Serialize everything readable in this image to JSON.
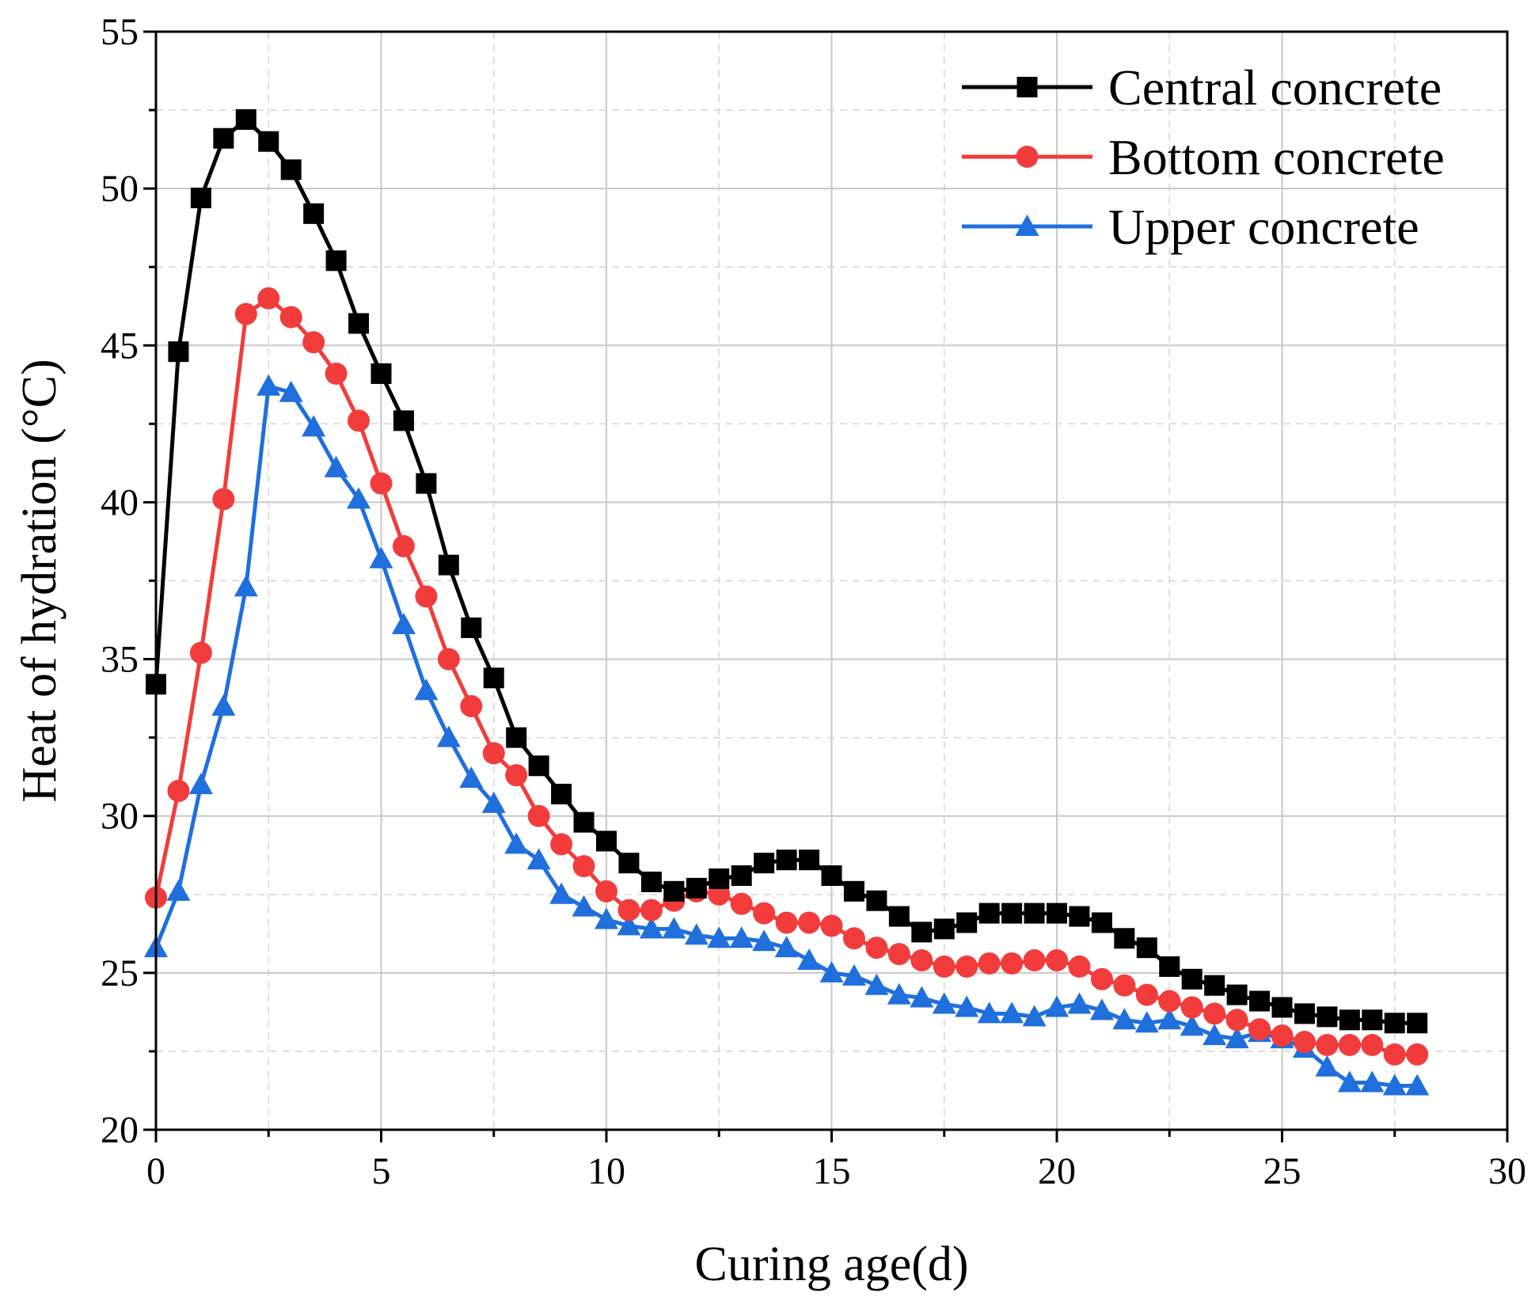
{
  "chart_data": {
    "type": "line",
    "title": "",
    "xlabel": "Curing age(d)",
    "ylabel": "Heat of hydration (°C)",
    "xlim": [
      0,
      30
    ],
    "ylim": [
      20,
      55
    ],
    "xticks": [
      0,
      5,
      10,
      15,
      20,
      25,
      30
    ],
    "yticks": [
      20,
      25,
      30,
      35,
      40,
      45,
      50,
      55
    ],
    "xtick_labels": [
      "0",
      "5",
      "10",
      "15",
      "20",
      "25",
      "30"
    ],
    "ytick_labels": [
      "20",
      "25",
      "30",
      "35",
      "40",
      "45",
      "50",
      "55"
    ],
    "grid": true,
    "legend_position": "top-right",
    "x": [
      0,
      0.5,
      1,
      1.5,
      2,
      2.5,
      3,
      3.5,
      4,
      4.5,
      5,
      5.5,
      6,
      6.5,
      7,
      7.5,
      8,
      8.5,
      9,
      9.5,
      10,
      10.5,
      11,
      11.5,
      12,
      12.5,
      13,
      13.5,
      14,
      14.5,
      15,
      15.5,
      16,
      16.5,
      17,
      17.5,
      18,
      18.5,
      19,
      19.5,
      20,
      20.5,
      21,
      21.5,
      22,
      22.5,
      23,
      23.5,
      24,
      24.5,
      25,
      25.5,
      26,
      26.5,
      27,
      27.5,
      28
    ],
    "series": [
      {
        "name": "Central concrete",
        "color": "#000000",
        "marker": "square",
        "values": [
          34.2,
          44.8,
          49.7,
          51.6,
          52.2,
          51.5,
          50.6,
          49.2,
          47.7,
          45.7,
          44.1,
          42.6,
          40.6,
          38.0,
          36.0,
          34.4,
          32.5,
          31.6,
          30.7,
          29.8,
          29.2,
          28.5,
          27.9,
          27.6,
          27.7,
          28.0,
          28.1,
          28.5,
          28.6,
          28.6,
          28.1,
          27.6,
          27.3,
          26.8,
          26.3,
          26.4,
          26.6,
          26.9,
          26.9,
          26.9,
          26.9,
          26.8,
          26.6,
          26.1,
          25.8,
          25.2,
          24.8,
          24.6,
          24.3,
          24.1,
          23.9,
          23.7,
          23.6,
          23.5,
          23.5,
          23.4,
          23.4
        ]
      },
      {
        "name": "Bottom concrete",
        "color": "#f23c3c",
        "marker": "circle",
        "values": [
          27.4,
          30.8,
          35.2,
          40.1,
          46.0,
          46.5,
          45.9,
          45.1,
          44.1,
          42.6,
          40.6,
          38.6,
          37.0,
          35.0,
          33.5,
          32.0,
          31.3,
          30.0,
          29.1,
          28.4,
          27.6,
          27.0,
          27.0,
          27.3,
          27.6,
          27.5,
          27.2,
          26.9,
          26.6,
          26.6,
          26.5,
          26.1,
          25.8,
          25.6,
          25.4,
          25.2,
          25.2,
          25.3,
          25.3,
          25.4,
          25.4,
          25.2,
          24.8,
          24.6,
          24.3,
          24.1,
          23.9,
          23.7,
          23.5,
          23.2,
          23.0,
          22.8,
          22.7,
          22.7,
          22.7,
          22.4,
          22.4
        ]
      },
      {
        "name": "Upper concrete",
        "color": "#1f6fdc",
        "marker": "triangle",
        "values": [
          25.8,
          27.6,
          31.0,
          33.5,
          37.3,
          43.7,
          43.5,
          42.4,
          41.1,
          40.1,
          38.2,
          36.1,
          34.0,
          32.5,
          31.2,
          30.4,
          29.1,
          28.6,
          27.5,
          27.1,
          26.7,
          26.5,
          26.4,
          26.4,
          26.2,
          26.1,
          26.1,
          26.0,
          25.8,
          25.4,
          25.0,
          24.9,
          24.6,
          24.3,
          24.2,
          24.0,
          23.9,
          23.7,
          23.7,
          23.6,
          23.9,
          24.0,
          23.8,
          23.5,
          23.4,
          23.5,
          23.3,
          23.0,
          22.9,
          23.1,
          22.9,
          22.6,
          22.0,
          21.5,
          21.5,
          21.4,
          21.4
        ]
      }
    ]
  }
}
